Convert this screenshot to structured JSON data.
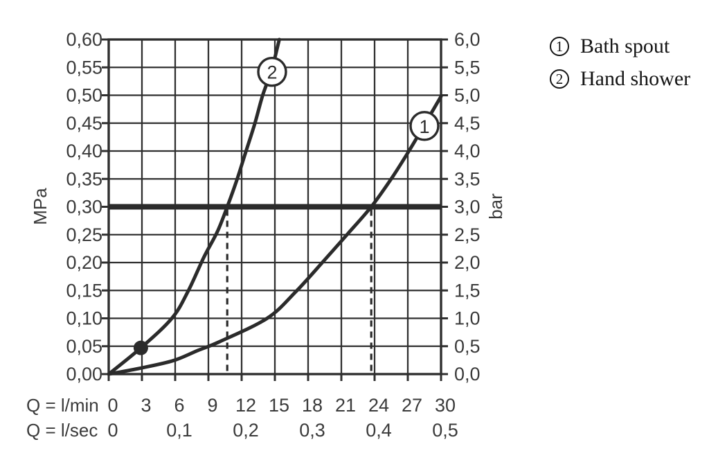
{
  "colors": {
    "background": "#ffffff",
    "grid": "#2f2f2f",
    "curve": "#2b2b2b",
    "text": "#3a3a3a",
    "legend_text": "#141414",
    "marker_fill": "#ffffff"
  },
  "legend": {
    "items": [
      {
        "number": "1",
        "label": "Bath spout"
      },
      {
        "number": "2",
        "label": "Hand shower"
      }
    ]
  },
  "chart_data": {
    "type": "line",
    "title": "",
    "grid": true,
    "y_axis_left": {
      "label": "MPa",
      "range": [
        0,
        0.6
      ],
      "step": 0.05,
      "tick_labels": [
        "0,60",
        "0,55",
        "0,50",
        "0,45",
        "0,40",
        "0,35",
        "0,30",
        "0,25",
        "0,20",
        "0,15",
        "0,10",
        "0,05",
        "0,00"
      ]
    },
    "y_axis_right": {
      "label": "bar",
      "range": [
        0,
        6
      ],
      "step": 0.5,
      "tick_labels": [
        "6,0",
        "5,5",
        "5,0",
        "4,5",
        "4,0",
        "3,5",
        "3,0",
        "2,5",
        "2,0",
        "1,5",
        "1,0",
        "0,5",
        "0,0"
      ]
    },
    "x_axis": {
      "range": [
        0,
        30
      ],
      "rows": [
        {
          "label": "Q = l/min",
          "tick_values": [
            0,
            3,
            6,
            9,
            12,
            15,
            18,
            21,
            24,
            27,
            30
          ],
          "tick_labels": [
            "0",
            "3",
            "6",
            "9",
            "12",
            "15",
            "18",
            "21",
            "24",
            "27",
            "30"
          ]
        },
        {
          "label": "Q = l/sec",
          "tick_values": [
            0,
            6,
            12,
            18,
            24,
            30
          ],
          "tick_labels": [
            "0",
            "0,1",
            "0,2",
            "0,3",
            "0,4",
            "0,5"
          ]
        }
      ]
    },
    "series": [
      {
        "id": "1",
        "name": "Bath spout",
        "marker_label": "1",
        "marker_pos": [
          28.5,
          0.445
        ],
        "points": [
          [
            0,
            0
          ],
          [
            2.7,
            0.01
          ],
          [
            5.8,
            0.024
          ],
          [
            8,
            0.042
          ],
          [
            10,
            0.058
          ],
          [
            14.3,
            0.1
          ],
          [
            16.9,
            0.148
          ],
          [
            19.5,
            0.205
          ],
          [
            21.6,
            0.252
          ],
          [
            23.7,
            0.3
          ],
          [
            25.5,
            0.35
          ],
          [
            27.1,
            0.4
          ],
          [
            28.5,
            0.447
          ],
          [
            30,
            0.498
          ]
        ]
      },
      {
        "id": "2",
        "name": "Hand shower",
        "marker_label": "2",
        "marker_pos": [
          14.75,
          0.542
        ],
        "points": [
          [
            0,
            0
          ],
          [
            2.9,
            0.047
          ],
          [
            5.7,
            0.1
          ],
          [
            7.2,
            0.15
          ],
          [
            8.6,
            0.21
          ],
          [
            9.8,
            0.255
          ],
          [
            10.7,
            0.3
          ],
          [
            11.6,
            0.35
          ],
          [
            12.4,
            0.4
          ],
          [
            13.2,
            0.45
          ],
          [
            13.9,
            0.5
          ],
          [
            14.7,
            0.545
          ],
          [
            15.4,
            0.6
          ]
        ]
      }
    ],
    "annotations": {
      "pressure_limit": {
        "mpa": 0.3,
        "bar": 3.0
      },
      "dashed_guides_lmin": [
        10.7,
        23.7
      ],
      "dot_point_lmin_mpa": [
        2.9,
        0.047
      ]
    }
  }
}
